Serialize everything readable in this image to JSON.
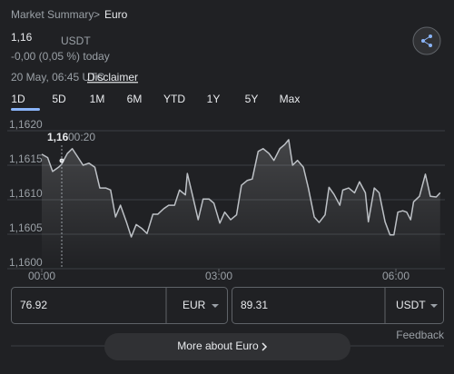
{
  "header": {
    "breadcrumb": "Market Summary",
    "separator": ">",
    "current": "Euro",
    "price": "1,16",
    "currency": "USDT",
    "change": "-0,00 (0,05 %) today",
    "timestamp": "20 May, 06:45 UTC ·",
    "disclaimer": "Disclaimer"
  },
  "tabs": [
    "1D",
    "5D",
    "1M",
    "6M",
    "YTD",
    "1Y",
    "5Y",
    "Max"
  ],
  "chart_data": {
    "type": "line",
    "color": "#bdc1c6",
    "grid": true,
    "tooltip": {
      "value": "1,16",
      "time": "00:20"
    },
    "x": [
      0,
      6,
      11,
      17,
      20,
      26,
      31,
      37,
      42,
      48,
      54,
      59,
      65,
      70,
      75,
      80,
      86,
      91,
      96,
      102,
      107,
      113,
      118,
      124,
      129,
      135,
      140,
      146,
      148,
      153,
      159,
      164,
      170,
      175,
      181,
      186,
      192,
      198,
      203,
      209,
      214,
      220,
      225,
      231,
      236,
      242,
      247,
      251,
      255,
      260,
      266,
      271,
      277,
      282,
      288,
      292,
      297,
      303,
      306,
      312,
      318,
      323,
      329,
      332,
      338,
      343,
      349,
      354,
      358,
      362,
      367,
      371,
      375,
      378,
      384,
      390,
      395,
      401,
      405
    ],
    "values": [
      1.16166,
      1.16161,
      1.16141,
      1.16147,
      1.16151,
      1.16167,
      1.16174,
      1.16161,
      1.1615,
      1.16153,
      1.16147,
      1.16117,
      1.16117,
      1.16114,
      1.16075,
      1.16092,
      1.16068,
      1.16046,
      1.16064,
      1.16058,
      1.16051,
      1.16079,
      1.16079,
      1.16087,
      1.16092,
      1.16092,
      1.16114,
      1.16107,
      1.16138,
      1.16108,
      1.16071,
      1.16101,
      1.16101,
      1.16095,
      1.16066,
      1.16082,
      1.16071,
      1.16078,
      1.16121,
      1.16128,
      1.1613,
      1.1617,
      1.16174,
      1.16167,
      1.16157,
      1.16174,
      1.1618,
      1.16187,
      1.1615,
      1.16157,
      1.16147,
      1.16117,
      1.16075,
      1.16067,
      1.16078,
      1.16118,
      1.16108,
      1.16092,
      1.16114,
      1.16117,
      1.1611,
      1.16126,
      1.1611,
      1.16068,
      1.16117,
      1.1611,
      1.16068,
      1.16049,
      1.16049,
      1.16082,
      1.16084,
      1.16082,
      1.16071,
      1.16097,
      1.16105,
      1.16137,
      1.16105,
      1.16104,
      1.1611
    ],
    "xlim": [
      0,
      405
    ],
    "xticks": [
      {
        "value": 0,
        "label": "00:00"
      },
      {
        "value": 180,
        "label": "03:00"
      },
      {
        "value": 360,
        "label": "06:00"
      }
    ],
    "ylim": [
      1.16,
      1.162
    ],
    "yticks": [
      {
        "value": 1.16,
        "label": "1,1600"
      },
      {
        "value": 1.1605,
        "label": "1,1605"
      },
      {
        "value": 1.161,
        "label": "1,1610"
      },
      {
        "value": 1.1615,
        "label": "1,1615"
      },
      {
        "value": 1.162,
        "label": "1,1620"
      }
    ]
  },
  "converter": {
    "from_amount": "76.92",
    "from_currency": "EUR",
    "to_amount": "89.31",
    "to_currency": "USDT"
  },
  "feedback": "Feedback",
  "more_button": "More about Euro"
}
